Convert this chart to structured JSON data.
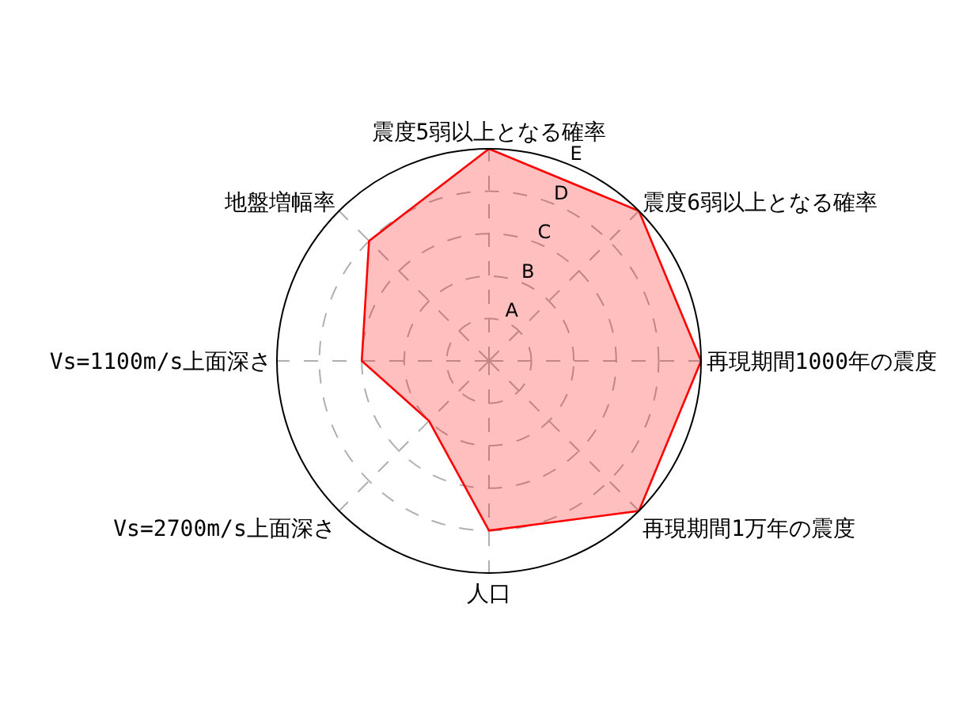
{
  "chart_data": {
    "type": "radar",
    "categories": [
      "震度5弱以上となる確率",
      "震度6弱以上となる確率",
      "再現期間1000年の震度",
      "再現期間1万年の震度",
      "人口",
      "Vs=2700m/s上面深さ",
      "Vs=1100m/s上面深さ",
      "地盤増幅率"
    ],
    "series": [
      {
        "color": "#ff0000",
        "values": [
          5,
          5,
          5,
          5,
          4,
          2,
          3,
          4
        ]
      }
    ],
    "ylim": [
      0,
      5
    ],
    "yticks": [
      {
        "value": 1,
        "label": "A"
      },
      {
        "value": 2,
        "label": "B"
      },
      {
        "value": 3,
        "label": "C"
      },
      {
        "value": 4,
        "label": "D"
      },
      {
        "value": 5,
        "label": "E"
      }
    ],
    "grid": true
  }
}
